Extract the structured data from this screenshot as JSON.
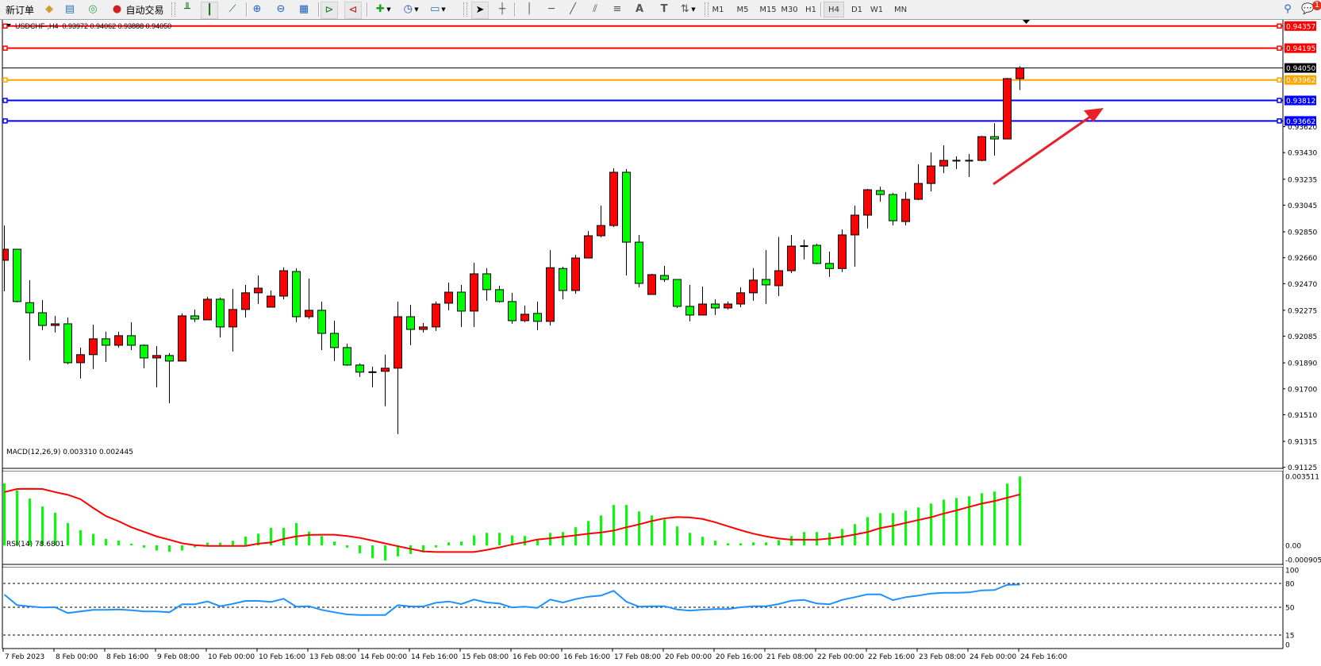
{
  "toolbar": {
    "new_order": "新订单",
    "auto_trading": "自动交易",
    "timeframes": [
      "M1",
      "M5",
      "M15",
      "M30",
      "H1",
      "H4",
      "D1",
      "W1",
      "MN"
    ],
    "active_timeframe": "H4",
    "notification_count": "1",
    "icons": [
      "new-order-icon",
      "market-watch-icon",
      "navigator-icon",
      "signals-icon",
      "auto-trading-icon",
      "bar-chart-icon",
      "candlestick-icon",
      "line-chart-icon",
      "zoom-in-icon",
      "zoom-out-icon",
      "tile-windows-icon",
      "chart-shift-icon",
      "autoscroll-icon",
      "new-chart-icon",
      "periods-icon",
      "templates-icon",
      "cursor-icon",
      "crosshair-icon",
      "vertical-line-icon",
      "horizontal-line-icon",
      "trendline-icon",
      "equidistant-channel-icon",
      "fibonacci-icon",
      "text-icon",
      "text-label-icon",
      "arrows-icon",
      "search-icon",
      "chat-icon"
    ]
  },
  "chart": {
    "symbol": "USDCHF-,H4",
    "ohlc_text": "0.93972 0.94062 0.93888 0.94050",
    "macd_label": "MACD(12,26,9) 0.003310 0.002445",
    "rsi_label": "RSI(14) 78.6801",
    "price_ticks": [
      "0.93620",
      "0.93430",
      "0.93235",
      "0.93045",
      "0.92850",
      "0.92660",
      "0.92470",
      "0.92275",
      "0.92085",
      "0.91890",
      "0.91700",
      "0.91510",
      "0.91315",
      "0.91125"
    ],
    "macd_ticks": [
      "0.003511",
      "0.00",
      "-0.000905"
    ],
    "rsi_ticks": [
      "100",
      "80",
      "50",
      "15",
      "0"
    ],
    "rsi_levels": [
      80,
      50,
      15
    ],
    "time_labels": [
      "7 Feb 2023",
      "8 Feb 00:00",
      "8 Feb 16:00",
      "9 Feb 08:00",
      "10 Feb 00:00",
      "10 Feb 16:00",
      "13 Feb 08:00",
      "14 Feb 00:00",
      "14 Feb 16:00",
      "15 Feb 08:00",
      "16 Feb 00:00",
      "16 Feb 16:00",
      "17 Feb 08:00",
      "20 Feb 00:00",
      "20 Feb 16:00",
      "21 Feb 08:00",
      "22 Feb 00:00",
      "22 Feb 16:00",
      "23 Feb 08:00",
      "24 Feb 00:00",
      "24 Feb 16:00"
    ],
    "bid_price": "0.94050",
    "horizontal_lines": [
      {
        "price": "0.94357",
        "color": "#ff0000"
      },
      {
        "price": "0.94195",
        "color": "#ff0000"
      },
      {
        "price": "0.93962",
        "color": "#ffa500"
      },
      {
        "price": "0.93812",
        "color": "#0000ff"
      },
      {
        "price": "0.93662",
        "color": "#0000ff"
      }
    ],
    "colors": {
      "up": "#ff0000",
      "down": "#00ff00",
      "macd_hist": "#00ff00",
      "macd_signal": "#ff0000",
      "rsi": "#1e90ff",
      "arrow": "#e8202a",
      "bid_line": "#000000"
    }
  },
  "chart_data": {
    "type": "candlestick",
    "symbol": "USDCHF-",
    "timeframe": "H4",
    "ohlc": [
      [
        0.92641,
        0.92896,
        0.92414,
        0.92722
      ],
      [
        0.92722,
        0.92725,
        0.92333,
        0.92339
      ],
      [
        0.92331,
        0.92496,
        0.91909,
        0.92257
      ],
      [
        0.92257,
        0.9235,
        0.9213,
        0.92164
      ],
      [
        0.92164,
        0.92234,
        0.92112,
        0.92176
      ],
      [
        0.92176,
        0.92223,
        0.9188,
        0.91891
      ],
      [
        0.91891,
        0.92002,
        0.91775,
        0.9195
      ],
      [
        0.9195,
        0.9217,
        0.91845,
        0.92066
      ],
      [
        0.92066,
        0.92118,
        0.91897,
        0.92019
      ],
      [
        0.92019,
        0.92118,
        0.92002,
        0.92089
      ],
      [
        0.92089,
        0.92188,
        0.91984,
        0.92019
      ],
      [
        0.92019,
        0.92025,
        0.91851,
        0.91926
      ],
      [
        0.91926,
        0.92013,
        0.91711,
        0.91944
      ],
      [
        0.91944,
        0.91961,
        0.91595,
        0.91903
      ],
      [
        0.91903,
        0.92252,
        0.91903,
        0.92234
      ],
      [
        0.92234,
        0.92281,
        0.92188,
        0.92211
      ],
      [
        0.92205,
        0.92374,
        0.92205,
        0.92356
      ],
      [
        0.92356,
        0.92368,
        0.92077,
        0.92153
      ],
      [
        0.92153,
        0.92432,
        0.91973,
        0.92281
      ],
      [
        0.92281,
        0.92461,
        0.92223,
        0.92403
      ],
      [
        0.92403,
        0.9253,
        0.92321,
        0.92437
      ],
      [
        0.92298,
        0.9242,
        0.92298,
        0.92379
      ],
      [
        0.92379,
        0.92589,
        0.92356,
        0.92565
      ],
      [
        0.92559,
        0.92583,
        0.92188,
        0.92228
      ],
      [
        0.92228,
        0.92507,
        0.92211,
        0.92275
      ],
      [
        0.92275,
        0.92339,
        0.91984,
        0.92106
      ],
      [
        0.92106,
        0.92199,
        0.91903,
        0.92002
      ],
      [
        0.92002,
        0.92031,
        0.91868,
        0.91874
      ],
      [
        0.91874,
        0.91886,
        0.91787,
        0.91822
      ],
      [
        0.91822,
        0.91862,
        0.91711,
        0.91822
      ],
      [
        0.91828,
        0.9195,
        0.91572,
        0.91851
      ],
      [
        0.91851,
        0.92339,
        0.91368,
        0.92228
      ],
      [
        0.92228,
        0.92315,
        0.92019,
        0.92135
      ],
      [
        0.92135,
        0.92182,
        0.92112,
        0.92153
      ],
      [
        0.92153,
        0.92339,
        0.92124,
        0.92321
      ],
      [
        0.92327,
        0.92478,
        0.92275,
        0.92408
      ],
      [
        0.92408,
        0.92461,
        0.92153,
        0.92269
      ],
      [
        0.92269,
        0.92623,
        0.92153,
        0.92542
      ],
      [
        0.92542,
        0.92583,
        0.92345,
        0.92426
      ],
      [
        0.92426,
        0.92455,
        0.92331,
        0.92339
      ],
      [
        0.92339,
        0.92403,
        0.92176,
        0.92199
      ],
      [
        0.92199,
        0.9231,
        0.92188,
        0.92246
      ],
      [
        0.92252,
        0.92339,
        0.9213,
        0.92194
      ],
      [
        0.92194,
        0.92716,
        0.92164,
        0.92587
      ],
      [
        0.92581,
        0.92594,
        0.92356,
        0.9242
      ],
      [
        0.9242,
        0.92681,
        0.92396,
        0.92658
      ],
      [
        0.92658,
        0.92856,
        0.92658,
        0.92821
      ],
      [
        0.92821,
        0.93042,
        0.92809,
        0.92896
      ],
      [
        0.92896,
        0.93315,
        0.92885,
        0.93286
      ],
      [
        0.93286,
        0.93309,
        0.9253,
        0.92774
      ],
      [
        0.92774,
        0.92827,
        0.92443,
        0.92472
      ],
      [
        0.92391,
        0.92542,
        0.92391,
        0.92536
      ],
      [
        0.9253,
        0.926,
        0.92484,
        0.92501
      ],
      [
        0.92501,
        0.92501,
        0.92292,
        0.92304
      ],
      [
        0.92304,
        0.92461,
        0.92194,
        0.9224
      ],
      [
        0.9224,
        0.92449,
        0.9224,
        0.92321
      ],
      [
        0.92321,
        0.92356,
        0.9224,
        0.92292
      ],
      [
        0.92292,
        0.92339,
        0.92281,
        0.92321
      ],
      [
        0.92321,
        0.92443,
        0.92298,
        0.92403
      ],
      [
        0.92403,
        0.92583,
        0.92345,
        0.92496
      ],
      [
        0.92501,
        0.92716,
        0.92321,
        0.92461
      ],
      [
        0.92455,
        0.92813,
        0.92379,
        0.92565
      ],
      [
        0.92565,
        0.92827,
        0.92547,
        0.92745
      ],
      [
        0.92745,
        0.92792,
        0.92647,
        0.92745
      ],
      [
        0.92751,
        0.92763,
        0.92612,
        0.92618
      ],
      [
        0.92618,
        0.92705,
        0.92519,
        0.92581
      ],
      [
        0.92581,
        0.92867,
        0.92555,
        0.92827
      ],
      [
        0.92827,
        0.93042,
        0.92595,
        0.92972
      ],
      [
        0.92972,
        0.93164,
        0.92875,
        0.93158
      ],
      [
        0.93152,
        0.93181,
        0.93071,
        0.93123
      ],
      [
        0.93123,
        0.93135,
        0.92898,
        0.92931
      ],
      [
        0.92925,
        0.93141,
        0.92898,
        0.93088
      ],
      [
        0.93088,
        0.93344,
        0.93082,
        0.93204
      ],
      [
        0.93204,
        0.93431,
        0.93146,
        0.93332
      ],
      [
        0.93332,
        0.93483,
        0.9328,
        0.93373
      ],
      [
        0.93371,
        0.93402,
        0.93309,
        0.93371
      ],
      [
        0.93371,
        0.9342,
        0.93251,
        0.93371
      ],
      [
        0.93373,
        0.93553,
        0.93367,
        0.93547
      ],
      [
        0.93547,
        0.93646,
        0.93408,
        0.9353
      ],
      [
        0.9353,
        0.93977,
        0.9353,
        0.93972
      ],
      [
        0.93972,
        0.94062,
        0.93888,
        0.9405
      ]
    ],
    "price_range": [
      0.91125,
      0.94357
    ],
    "macd_histogram": [
      0.00298,
      0.00265,
      0.00225,
      0.00187,
      0.00157,
      0.00107,
      0.00073,
      0.00055,
      0.00031,
      0.00023,
      8e-05,
      -0.00011,
      -0.00025,
      -0.00031,
      -0.00025,
      -0.0001,
      0.00013,
      0.00013,
      0.00022,
      0.00042,
      0.00056,
      0.00084,
      0.00084,
      0.00107,
      0.00066,
      0.00045,
      0.00018,
      -0.00011,
      -0.00038,
      -0.00061,
      -0.00073,
      -0.00053,
      -0.00042,
      -0.00034,
      -0.0001,
      0.00014,
      0.00018,
      0.00048,
      0.0006,
      0.0006,
      0.00048,
      0.00045,
      0.00029,
      0.0006,
      0.00064,
      0.00087,
      0.00117,
      0.00144,
      0.00194,
      0.00194,
      0.00163,
      0.00144,
      0.00125,
      0.00091,
      0.0006,
      0.00041,
      0.00022,
      0.0001,
      0.0001,
      0.00014,
      0.00014,
      0.00025,
      0.00045,
      0.00064,
      0.00064,
      0.0006,
      0.00079,
      0.00102,
      0.00136,
      0.00155,
      0.00155,
      0.00167,
      0.00182,
      0.00201,
      0.0022,
      0.00228,
      0.00236,
      0.00251,
      0.00259,
      0.00297,
      0.00331
    ],
    "macd_signal": [
      0.00256,
      0.00271,
      0.00272,
      0.00271,
      0.00256,
      0.00243,
      0.00222,
      0.0018,
      0.00141,
      0.00116,
      0.00087,
      0.00065,
      0.00043,
      0.00027,
      0.0001,
      1e-05,
      -3e-05,
      -3e-05,
      -3e-05,
      -3e-05,
      8e-05,
      0.00014,
      0.00031,
      0.00043,
      0.0005,
      0.00051,
      0.00051,
      0.00045,
      0.00036,
      0.00023,
      9e-05,
      -4e-05,
      -0.00017,
      -0.00029,
      -0.00032,
      -0.00032,
      -0.00032,
      -0.00032,
      -0.00022,
      -0.0001,
      4e-05,
      0.00015,
      0.00028,
      0.00034,
      0.00041,
      0.00048,
      0.00056,
      0.00062,
      0.00071,
      0.00087,
      0.00101,
      0.00117,
      0.0013,
      0.00136,
      0.00134,
      0.00127,
      0.00111,
      0.00092,
      0.00073,
      0.00056,
      0.00043,
      0.00033,
      0.00027,
      0.00027,
      0.00027,
      0.00033,
      0.00041,
      0.00052,
      0.00064,
      0.00083,
      0.00094,
      0.00108,
      0.00122,
      0.00135,
      0.00153,
      0.00168,
      0.00185,
      0.00201,
      0.00213,
      0.00229,
      0.002445
    ],
    "macd_range": [
      -0.000905,
      0.003511
    ],
    "rsi": [
      66,
      52.7,
      51,
      49.7,
      50,
      42.7,
      44.7,
      46.7,
      46.7,
      47.3,
      46.3,
      44.7,
      44.7,
      43.7,
      53.7,
      53.7,
      57.3,
      51.3,
      54.3,
      58,
      58,
      56.7,
      60.7,
      50.7,
      51.3,
      46.7,
      43.7,
      41,
      40.3,
      40.3,
      40.3,
      52.7,
      51,
      51,
      55.7,
      57.3,
      54,
      59.7,
      56,
      54.7,
      49.7,
      50.7,
      49.3,
      59.7,
      56,
      60.3,
      63.3,
      64.7,
      70.7,
      57,
      50.7,
      51.3,
      51.3,
      47.3,
      45.7,
      47,
      47.7,
      47.7,
      50,
      51.3,
      51.3,
      54,
      58.3,
      59.3,
      54.7,
      53.7,
      59.3,
      62.7,
      66.3,
      66.3,
      59,
      62.7,
      64.7,
      67.3,
      68.3,
      68.3,
      68.7,
      71.3,
      71.7,
      78.3,
      78.68
    ],
    "rsi_range": [
      0,
      100
    ]
  }
}
